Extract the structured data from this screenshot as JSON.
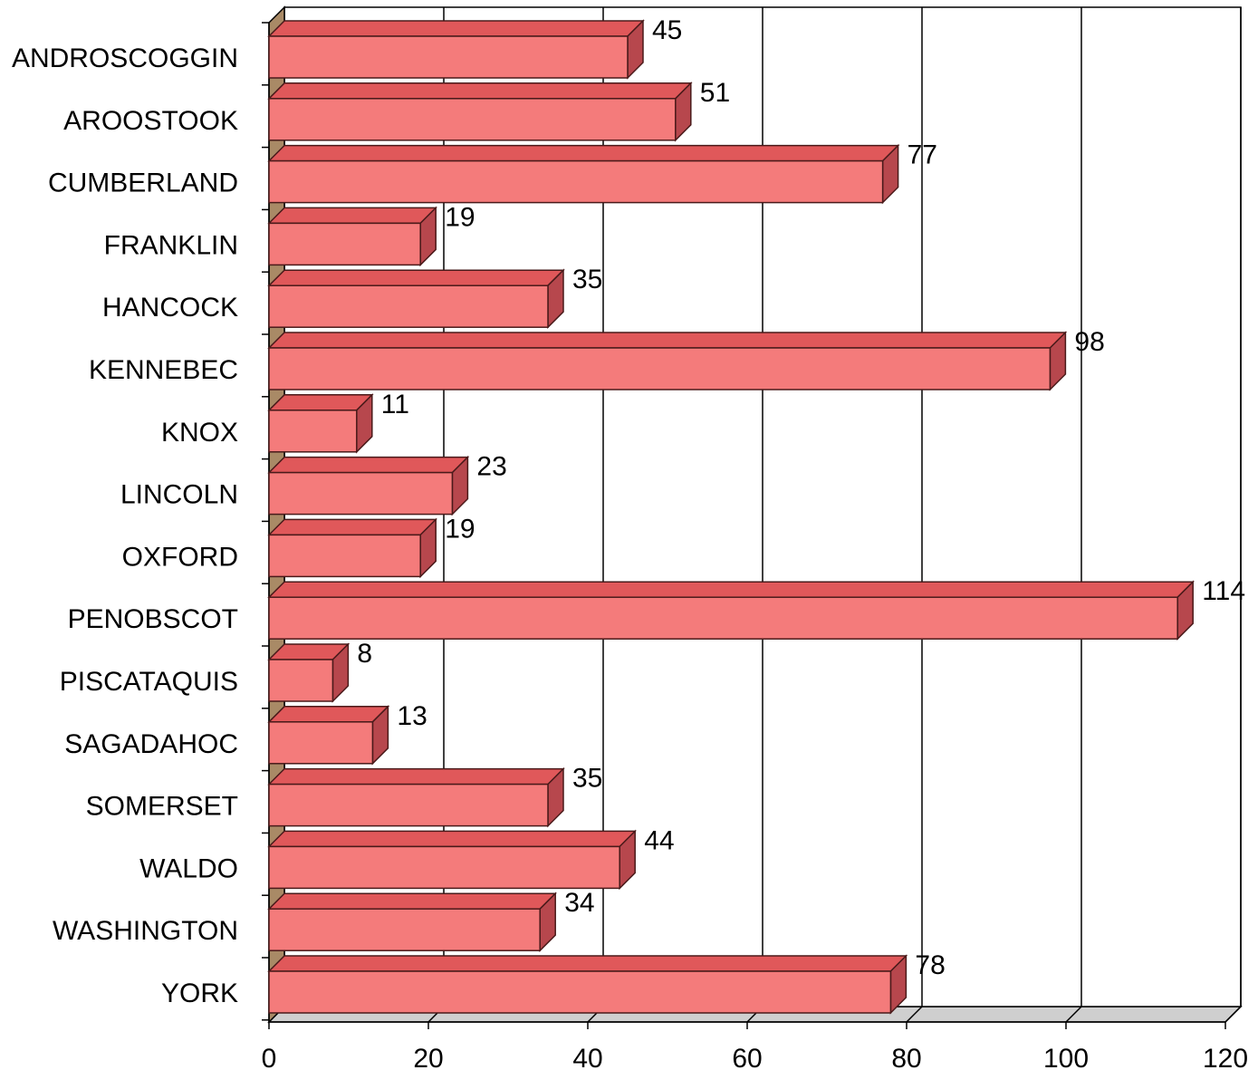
{
  "chart_data": {
    "type": "bar",
    "orientation": "horizontal",
    "style": "3d",
    "categories": [
      "ANDROSCOGGIN",
      "AROOSTOOK",
      "CUMBERLAND",
      "FRANKLIN",
      "HANCOCK",
      "KENNEBEC",
      "KNOX",
      "LINCOLN",
      "OXFORD",
      "PENOBSCOT",
      "PISCATAQUIS",
      "SAGADAHOC",
      "SOMERSET",
      "WALDO",
      "WASHINGTON",
      "YORK"
    ],
    "values": [
      45,
      51,
      77,
      19,
      35,
      98,
      11,
      23,
      19,
      114,
      8,
      13,
      35,
      44,
      34,
      78
    ],
    "value_labels": [
      "45",
      "51",
      "77",
      "19",
      "35",
      "98",
      "11",
      "23",
      "19",
      "114",
      "8",
      "13",
      "35",
      "44",
      "34",
      "78"
    ],
    "xlim": [
      0,
      120
    ],
    "xticks": [
      0,
      20,
      40,
      60,
      80,
      100,
      120
    ],
    "xtick_labels": [
      "0",
      "20",
      "40",
      "60",
      "80",
      "100",
      "120"
    ],
    "grid": true,
    "legend": "none",
    "title": "",
    "xlabel": "",
    "ylabel": "",
    "colors": {
      "bar_front": "#f47b7b",
      "bar_top": "#e0585a",
      "bar_side": "#b7474d",
      "bar_outline": "#4a1a1a",
      "wall": "#a98a66",
      "floor": "#cfcfcf",
      "grid": "#000000"
    }
  }
}
